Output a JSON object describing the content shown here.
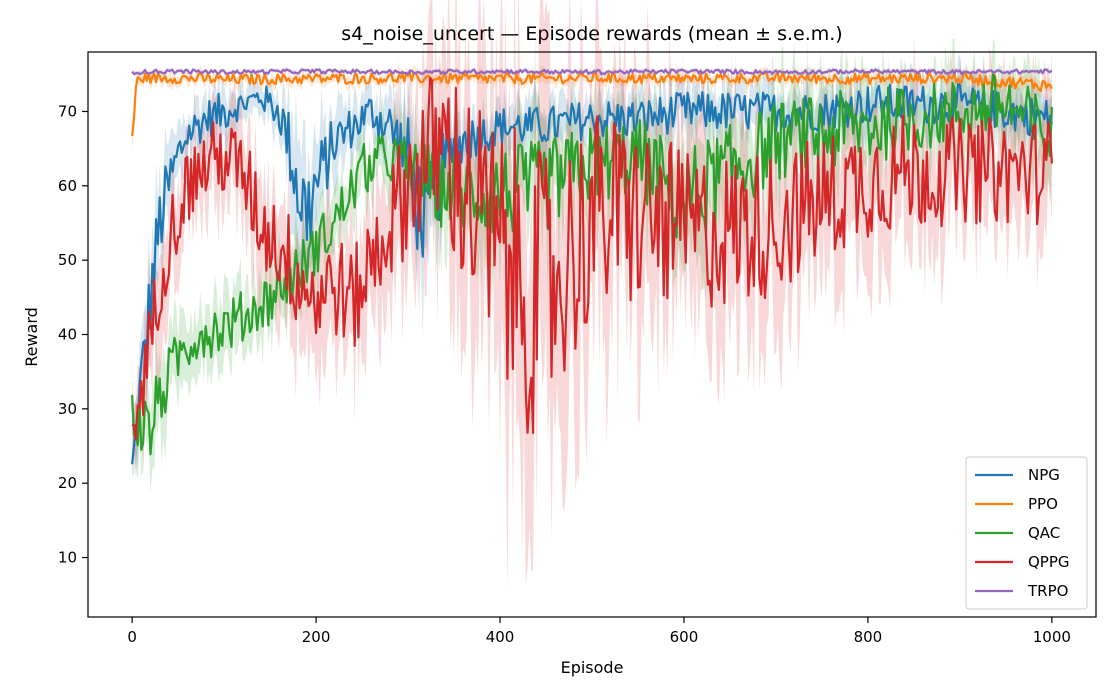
{
  "chart_data": {
    "type": "line",
    "title": "s4_noise_uncert — Episode rewards (mean ± s.e.m.)",
    "xlabel": "Episode",
    "ylabel": "Reward",
    "xlim": [
      -48,
      1048
    ],
    "ylim": [
      2.0,
      78.0
    ],
    "xticks": [
      0,
      200,
      400,
      600,
      800,
      1000
    ],
    "yticks": [
      10,
      20,
      30,
      40,
      50,
      60,
      70
    ],
    "legend_position": "lower-right",
    "grid": false,
    "series": [
      {
        "name": "NPG",
        "color": "#1f77b4",
        "x": [
          0,
          10,
          20,
          30,
          40,
          50,
          60,
          70,
          80,
          100,
          120,
          140,
          160,
          170,
          180,
          190,
          200,
          220,
          240,
          260,
          280,
          300,
          310,
          320,
          330,
          340,
          360,
          380,
          400,
          450,
          500,
          550,
          600,
          650,
          700,
          750,
          800,
          850,
          900,
          950,
          1000
        ],
        "y": [
          22,
          34,
          45,
          55,
          60,
          64,
          67,
          68,
          69,
          70,
          71,
          72,
          70,
          66,
          60,
          56,
          60,
          66,
          68,
          70,
          68,
          64,
          58,
          55,
          59,
          63,
          66,
          67,
          68,
          68,
          69,
          69,
          70,
          70,
          70,
          70,
          71,
          71,
          71,
          70,
          69
        ],
        "sem": [
          2,
          5,
          6,
          6,
          5,
          4,
          3,
          3,
          3,
          3,
          2,
          2,
          3,
          5,
          8,
          8,
          6,
          4,
          3,
          3,
          4,
          6,
          8,
          8,
          7,
          5,
          4,
          3,
          3,
          3,
          3,
          3,
          3,
          3,
          3,
          3,
          3,
          3,
          3,
          3,
          3
        ]
      },
      {
        "name": "PPO",
        "color": "#ff7f0e",
        "x": [
          0,
          5,
          10,
          50,
          100,
          200,
          300,
          400,
          500,
          600,
          700,
          800,
          900,
          1000
        ],
        "y": [
          66.5,
          74,
          74.5,
          74.5,
          74.3,
          74.4,
          74.5,
          74.4,
          74.5,
          74.4,
          74.5,
          74.4,
          74.5,
          73.5
        ],
        "sem": [
          2,
          1,
          0.8,
          0.8,
          0.8,
          0.8,
          0.8,
          0.8,
          0.8,
          0.8,
          0.8,
          0.8,
          0.8,
          1
        ]
      },
      {
        "name": "QAC",
        "color": "#2ca02c",
        "x": [
          0,
          10,
          20,
          30,
          40,
          50,
          70,
          100,
          130,
          160,
          190,
          220,
          250,
          280,
          300,
          330,
          360,
          400,
          450,
          500,
          550,
          600,
          650,
          700,
          750,
          800,
          850,
          900,
          950,
          1000
        ],
        "y": [
          29,
          28,
          27,
          32,
          34,
          37,
          40,
          41,
          43,
          46,
          50,
          55,
          62,
          64,
          62,
          60,
          59,
          59,
          60,
          63,
          64,
          58,
          62,
          66,
          67,
          68,
          69,
          70,
          71,
          66
        ],
        "sem": [
          4,
          5,
          5,
          5,
          5,
          4,
          4,
          4,
          4,
          4,
          4,
          4,
          4,
          4,
          5,
          6,
          6,
          7,
          7,
          6,
          6,
          8,
          7,
          6,
          6,
          6,
          5,
          5,
          5,
          6
        ]
      },
      {
        "name": "QPPG",
        "color": "#d62728",
        "x": [
          0,
          10,
          20,
          30,
          40,
          60,
          80,
          100,
          120,
          140,
          160,
          180,
          200,
          220,
          240,
          260,
          280,
          300,
          320,
          340,
          360,
          380,
          400,
          420,
          440,
          460,
          480,
          500,
          550,
          600,
          650,
          700,
          750,
          800,
          850,
          900,
          950,
          1000
        ],
        "y": [
          27,
          32,
          40,
          47,
          53,
          60,
          63,
          64,
          62,
          55,
          52,
          48,
          45,
          47,
          44,
          50,
          55,
          60,
          64,
          65,
          60,
          55,
          50,
          48,
          45,
          47,
          52,
          56,
          56,
          54,
          54,
          55,
          58,
          61,
          62,
          62,
          62,
          62
        ],
        "sem": [
          4,
          5,
          6,
          6,
          6,
          6,
          6,
          6,
          6,
          7,
          7,
          8,
          8,
          8,
          8,
          8,
          9,
          10,
          12,
          14,
          16,
          18,
          20,
          22,
          22,
          20,
          18,
          16,
          14,
          12,
          12,
          11,
          10,
          9,
          9,
          8,
          8,
          8
        ]
      },
      {
        "name": "TRPO",
        "color": "#9467bd",
        "x": [
          0,
          50,
          100,
          200,
          300,
          400,
          500,
          600,
          700,
          800,
          900,
          1000
        ],
        "y": [
          75.3,
          75.4,
          75.3,
          75.4,
          75.3,
          75.4,
          75.3,
          75.4,
          75.3,
          75.4,
          75.3,
          75.4
        ],
        "sem": [
          0.3,
          0.3,
          0.3,
          0.3,
          0.3,
          0.3,
          0.3,
          0.3,
          0.3,
          0.3,
          0.3,
          0.3
        ]
      }
    ]
  }
}
